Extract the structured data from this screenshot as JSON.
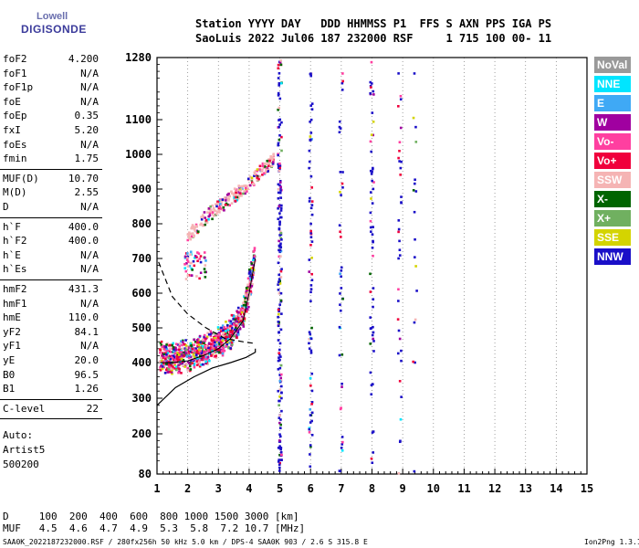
{
  "logo": {
    "line1": "Lowell",
    "line2": "DIGISONDE"
  },
  "header": {
    "line1": "Station YYYY DAY   DDD HHMMSS P1  FFS S AXN PPS IGA PS",
    "line2": "SaoLuis 2022 Jul06 187 232000 RSF     1 715 100 00- 11"
  },
  "params_groups": [
    [
      [
        "foF2",
        "4.200"
      ],
      [
        "foF1",
        "N/A"
      ],
      [
        "foF1p",
        "N/A"
      ],
      [
        "foE",
        "N/A"
      ],
      [
        "foEp",
        "0.35"
      ],
      [
        "fxI",
        "5.20"
      ],
      [
        "foEs",
        "N/A"
      ],
      [
        "fmin",
        "1.75"
      ]
    ],
    [
      [
        "MUF(D)",
        "10.70"
      ],
      [
        "M(D)",
        "2.55"
      ],
      [
        "D",
        "N/A"
      ]
    ],
    [
      [
        "h`F",
        "400.0"
      ],
      [
        "h`F2",
        "400.0"
      ],
      [
        "h`E",
        "N/A"
      ],
      [
        "h`Es",
        "N/A"
      ]
    ],
    [
      [
        "hmF2",
        "431.3"
      ],
      [
        "hmF1",
        "N/A"
      ],
      [
        "hmE",
        "110.0"
      ],
      [
        "yF2",
        "84.1"
      ],
      [
        "yF1",
        "N/A"
      ],
      [
        "yE",
        "20.0"
      ],
      [
        "B0",
        "96.5"
      ],
      [
        "B1",
        "1.26"
      ]
    ],
    [
      [
        "C-level",
        "22"
      ]
    ]
  ],
  "auto": [
    "Auto:",
    "Artist5",
    "500200"
  ],
  "muf_table": {
    "d_line": "D     100  200  400  600  800 1000 1500 3000 [km]",
    "muf_line": "MUF   4.5  4.6  4.7  4.9  5.3  5.8  7.2 10.7 [MHz]"
  },
  "footer": {
    "left": "SAA0K_2022187232000.RSF / 280fx256h 50 kHz 5.0 km / DPS-4 SAA0K 903 / 2.6 S 315.8 E",
    "right": "Ion2Png 1.3.17"
  },
  "legend": [
    {
      "label": "NoVal",
      "color": "#999999"
    },
    {
      "label": "NNE",
      "color": "#00e5ff"
    },
    {
      "label": "E",
      "color": "#3fa9f5"
    },
    {
      "label": "W",
      "color": "#a000a0"
    },
    {
      "label": "Vo-",
      "color": "#ff3fa0"
    },
    {
      "label": "Vo+",
      "color": "#f0003c"
    },
    {
      "label": "SSW",
      "color": "#f5b4b4"
    },
    {
      "label": "X-",
      "color": "#006400"
    },
    {
      "label": "X+",
      "color": "#70b060"
    },
    {
      "label": "SSE",
      "color": "#d4d400"
    },
    {
      "label": "NNW",
      "color": "#1a0fc8"
    }
  ],
  "chart_data": {
    "type": "scatter",
    "title": "",
    "xlabel": "",
    "ylabel": "",
    "x_ticks": [
      1,
      2,
      3,
      4,
      5,
      6,
      7,
      8,
      9,
      10,
      11,
      12,
      13,
      14,
      15
    ],
    "y_ticks": [
      80,
      200,
      300,
      400,
      500,
      600,
      700,
      800,
      900,
      1000,
      1100,
      1280
    ],
    "xlim": [
      1,
      15
    ],
    "ylim": [
      80,
      1280
    ],
    "y_scale": "nonlinear (virtual height, km)",
    "x_unit": "MHz",
    "grid": "vertical dotted lines at each MHz",
    "series": [
      {
        "name": "O-trace (F2)",
        "x": [
          1.1,
          1.5,
          2.0,
          2.5,
          3.0,
          3.4,
          3.8,
          4.0,
          4.2
        ],
        "y": [
          400,
          400,
          405,
          420,
          440,
          470,
          520,
          600,
          700
        ]
      },
      {
        "name": "Multi-hop trace",
        "x": [
          2.0,
          2.6,
          3.2,
          3.8,
          4.4,
          4.8
        ],
        "y": [
          760,
          820,
          860,
          900,
          950,
          990
        ]
      },
      {
        "name": "Electron density profile",
        "x": [
          1.0,
          1.6,
          2.2,
          2.8,
          3.4,
          3.9,
          4.2,
          4.2
        ],
        "y": [
          280,
          330,
          360,
          385,
          400,
          415,
          430,
          440
        ]
      },
      {
        "name": "Model trace (dashed)",
        "x": [
          1.05,
          1.5,
          2.0,
          2.6,
          3.2,
          3.8,
          4.2
        ],
        "y": [
          690,
          590,
          540,
          500,
          470,
          460,
          455
        ]
      }
    ]
  }
}
